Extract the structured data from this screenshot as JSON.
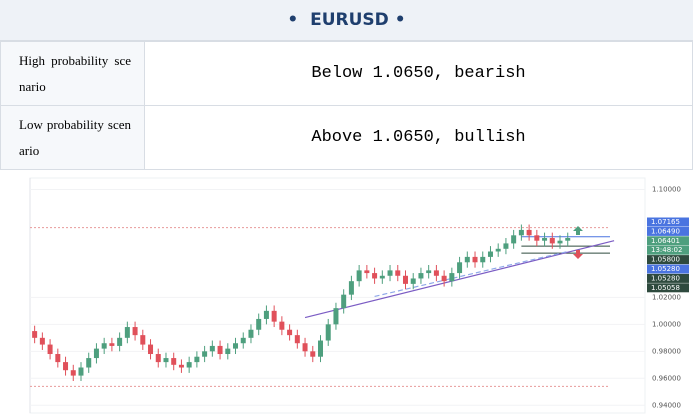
{
  "header": {
    "title": "•  EURUSD •"
  },
  "table": {
    "rows": [
      [
        "High probability scenario",
        "Below 1.0650, bearish"
      ],
      [
        "Low probability scenario",
        "Above 1.0650, bullish"
      ]
    ]
  },
  "chart_data": {
    "type": "candlestick",
    "open": [
      0.995,
      0.99,
      0.985,
      0.978,
      0.972,
      0.966,
      0.962,
      0.968,
      0.975,
      0.982,
      0.986,
      0.984,
      0.99,
      0.998,
      0.992,
      0.985,
      0.978,
      0.972,
      0.975,
      0.97,
      0.968,
      0.972,
      0.976,
      0.98,
      0.984,
      0.978,
      0.982,
      0.986,
      0.99,
      0.996,
      1.004,
      1.01,
      1.002,
      0.996,
      0.992,
      0.986,
      0.98,
      0.976,
      0.988,
      1.0,
      1.012,
      1.022,
      1.032,
      1.04,
      1.038,
      1.034,
      1.036,
      1.04,
      1.036,
      1.03,
      1.034,
      1.038,
      1.04,
      1.036,
      1.032,
      1.038,
      1.046,
      1.05,
      1.046,
      1.05,
      1.054,
      1.056,
      1.06,
      1.066,
      1.07,
      1.066,
      1.062,
      1.064,
      1.06,
      1.062
    ],
    "high": [
      0.999,
      0.994,
      0.989,
      0.982,
      0.976,
      0.97,
      0.972,
      0.979,
      0.986,
      0.99,
      0.99,
      0.994,
      1.002,
      1.002,
      0.996,
      0.989,
      0.982,
      0.979,
      0.979,
      0.974,
      0.976,
      0.98,
      0.984,
      0.988,
      0.988,
      0.986,
      0.99,
      0.994,
      1.0,
      1.008,
      1.014,
      1.014,
      1.006,
      1.0,
      0.996,
      0.99,
      0.984,
      0.992,
      1.004,
      1.016,
      1.026,
      1.036,
      1.044,
      1.044,
      1.042,
      1.04,
      1.044,
      1.044,
      1.04,
      1.038,
      1.042,
      1.044,
      1.044,
      1.04,
      1.042,
      1.05,
      1.054,
      1.054,
      1.054,
      1.058,
      1.06,
      1.064,
      1.07,
      1.074,
      1.074,
      1.07,
      1.068,
      1.068,
      1.066,
      1.068
    ],
    "low": [
      0.986,
      0.981,
      0.974,
      0.968,
      0.962,
      0.958,
      0.958,
      0.964,
      0.971,
      0.978,
      0.98,
      0.98,
      0.986,
      0.988,
      0.981,
      0.974,
      0.968,
      0.968,
      0.966,
      0.964,
      0.964,
      0.968,
      0.972,
      0.976,
      0.974,
      0.974,
      0.978,
      0.982,
      0.986,
      0.992,
      1.0,
      0.998,
      0.992,
      0.988,
      0.982,
      0.976,
      0.972,
      0.972,
      0.984,
      0.996,
      1.008,
      1.018,
      1.028,
      1.034,
      1.03,
      1.03,
      1.032,
      1.032,
      1.026,
      1.026,
      1.03,
      1.034,
      1.032,
      1.028,
      1.028,
      1.034,
      1.042,
      1.042,
      1.042,
      1.046,
      1.05,
      1.052,
      1.056,
      1.062,
      1.062,
      1.058,
      1.058,
      1.056,
      1.056,
      1.058
    ],
    "close": [
      0.99,
      0.985,
      0.978,
      0.972,
      0.966,
      0.962,
      0.968,
      0.975,
      0.982,
      0.986,
      0.984,
      0.99,
      0.998,
      0.992,
      0.985,
      0.978,
      0.972,
      0.975,
      0.97,
      0.968,
      0.972,
      0.976,
      0.98,
      0.984,
      0.978,
      0.982,
      0.986,
      0.99,
      0.996,
      1.004,
      1.01,
      1.002,
      0.996,
      0.992,
      0.986,
      0.98,
      0.976,
      0.988,
      1.0,
      1.012,
      1.022,
      1.032,
      1.04,
      1.038,
      1.034,
      1.036,
      1.04,
      1.036,
      1.03,
      1.034,
      1.038,
      1.04,
      1.036,
      1.032,
      1.038,
      1.046,
      1.05,
      1.046,
      1.05,
      1.054,
      1.056,
      1.06,
      1.066,
      1.07,
      1.066,
      1.062,
      1.064,
      1.06,
      1.062,
      1.064
    ],
    "up_color": "#4e9f7e",
    "down_color": "#e0505a",
    "xlim": [
      -0.6,
      79
    ],
    "ylim": [
      0.9365,
      1.107
    ],
    "yticks": [
      {
        "value": 1.1,
        "label": "1.10000"
      },
      {
        "value": 1.02,
        "label": "1.02000"
      },
      {
        "value": 1.0,
        "label": "1.00000"
      },
      {
        "value": 0.98,
        "label": "0.98000"
      },
      {
        "value": 0.96,
        "label": "0.96000"
      },
      {
        "value": 0.94,
        "label": "0.94000"
      }
    ],
    "price_tags": [
      {
        "label": "1.07165",
        "color": "#4a74e0"
      },
      {
        "label": "1.06490",
        "color": "#4a74e0"
      },
      {
        "label": "1.06401",
        "color": "#4e9f7e"
      },
      {
        "label": "13:48:02",
        "color": "#4e9f7e"
      },
      {
        "label": "1.05800",
        "color": "#2e4a3e"
      },
      {
        "label": "1.05280",
        "color": "#4a74e0"
      },
      {
        "label": "1.05280",
        "color": "#2e4a3e"
      },
      {
        "label": "1.05058",
        "color": "#2e4a3e"
      }
    ],
    "hlines": [
      {
        "value": 1.07165,
        "color": "#e89a9a",
        "dash": true,
        "from": -0.6
      },
      {
        "value": 0.954,
        "color": "#e89a9a",
        "dash": true,
        "from": -0.6
      },
      {
        "value": 1.0649,
        "color": "#4a74e0",
        "dash": false,
        "from": 63
      },
      {
        "value": 1.058,
        "color": "#2e4a3e",
        "dash": false,
        "from": 63
      },
      {
        "value": 1.0528,
        "color": "#2e4a3e",
        "dash": false,
        "from": 63
      }
    ],
    "trendlines": [
      {
        "x": [
          35,
          75
        ],
        "y": [
          1.005,
          1.062
        ],
        "color": "#7b5cc4",
        "dash": false
      },
      {
        "x": [
          44,
          69
        ],
        "y": [
          1.0207,
          1.054
        ],
        "color": "#8fa8e8",
        "dash": true
      }
    ]
  }
}
